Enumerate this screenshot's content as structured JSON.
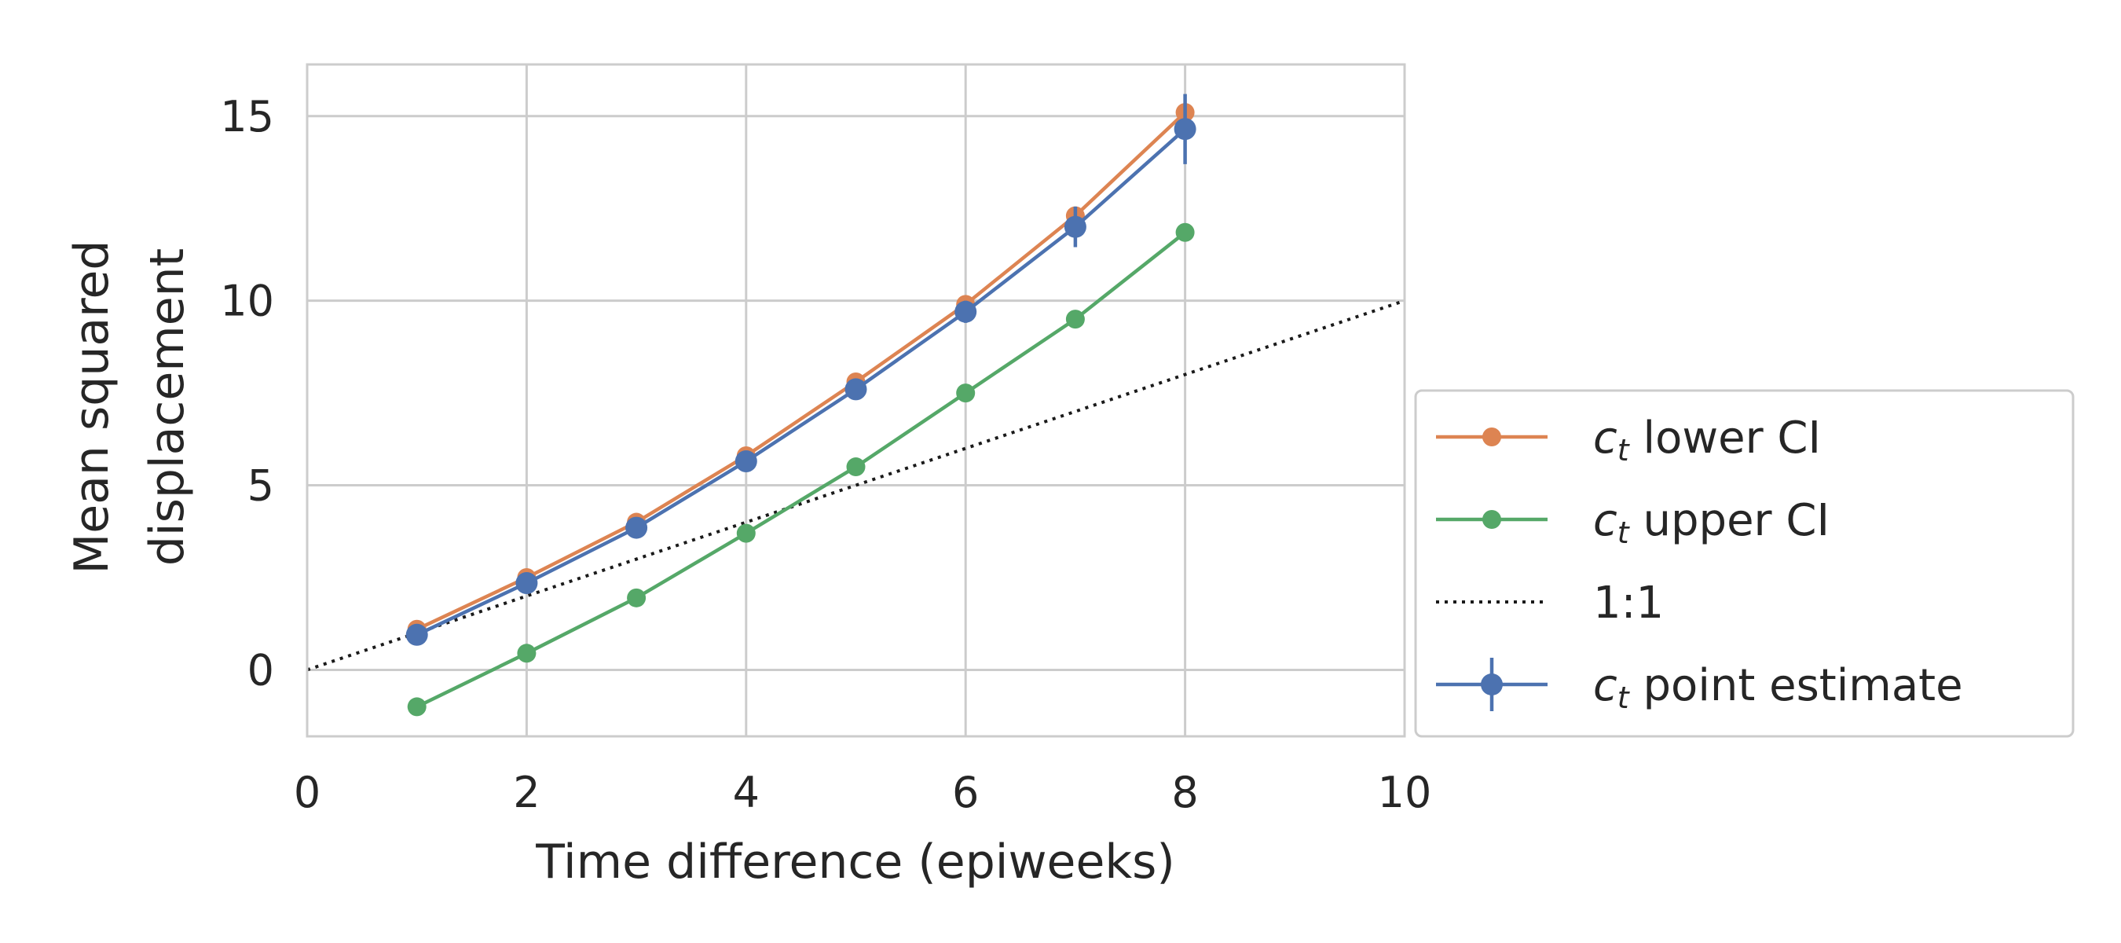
{
  "chart_data": {
    "type": "line",
    "xlabel": "Time difference (epiweeks)",
    "ylabel_lines": [
      "Mean squared",
      "displacement"
    ],
    "xlim": [
      0,
      10
    ],
    "ylim": [
      -1.8,
      16.4
    ],
    "xticks": [
      0,
      2,
      4,
      6,
      8,
      10
    ],
    "yticks": [
      0,
      5,
      10,
      15
    ],
    "x_tick_labels": [
      "0",
      "2",
      "4",
      "6",
      "8",
      "10"
    ],
    "y_tick_labels": [
      "0",
      "5",
      "10",
      "15"
    ],
    "grid": true,
    "legend_position": "outside-right",
    "x": [
      1,
      2,
      3,
      4,
      5,
      6,
      7,
      8
    ],
    "series": [
      {
        "key": "lower",
        "name_main": "c",
        "name_sub": "t",
        "name_rest": " lower CI",
        "color": "#dd8452",
        "values": [
          1.1,
          2.5,
          4.0,
          5.8,
          7.8,
          9.9,
          12.3,
          15.1
        ],
        "style": "line-marker"
      },
      {
        "key": "upper",
        "name_main": "c",
        "name_sub": "t",
        "name_rest": " upper CI",
        "color": "#55a868",
        "values": [
          -1.0,
          0.45,
          1.95,
          3.7,
          5.5,
          7.5,
          9.5,
          11.85
        ],
        "style": "line-marker"
      },
      {
        "key": "identity",
        "name_main": "1:1",
        "name_sub": "",
        "name_rest": "",
        "color": "#1a1a1a",
        "x": [
          0,
          10
        ],
        "values": [
          0,
          10
        ],
        "style": "dotted"
      },
      {
        "key": "point",
        "name_main": "c",
        "name_sub": "t",
        "name_rest": " point estimate",
        "color": "#4c72b0",
        "values": [
          0.95,
          2.35,
          3.85,
          5.65,
          7.6,
          9.7,
          12.0,
          14.65
        ],
        "err": [
          0.15,
          0.15,
          0.15,
          0.2,
          0.25,
          0.3,
          0.55,
          0.95
        ],
        "style": "errorbar"
      }
    ]
  }
}
